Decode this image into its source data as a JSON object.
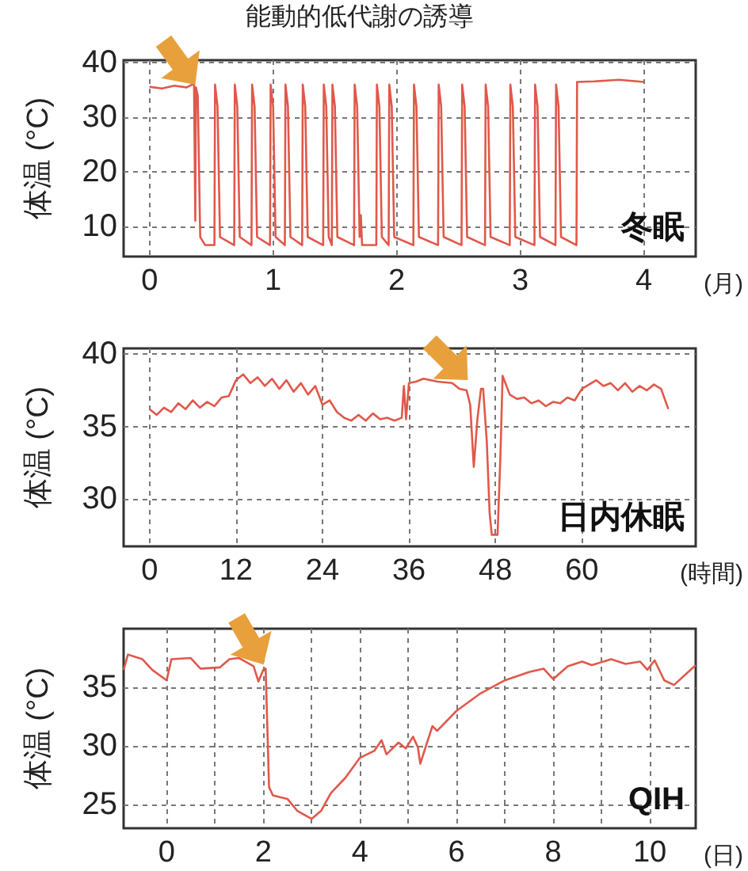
{
  "chart_data": [
    {
      "type": "line",
      "xlabel": "(月)",
      "ylabel": "体温 (°C)",
      "xlim": [
        -0.21,
        4.42
      ],
      "ylim": [
        4.4,
        40.5
      ],
      "xticks": [
        0,
        1,
        2,
        3,
        4
      ],
      "yticks": [
        10,
        20,
        30,
        40
      ],
      "grid": true,
      "annotations": [
        {
          "text": "能動的低代謝の誘導",
          "x": 0.37,
          "y": 36
        },
        "冬眠"
      ],
      "x": [
        0,
        0.1,
        0.2,
        0.3,
        0.36,
        0.37,
        0.375,
        0.39,
        0.41,
        0.45,
        0.525,
        0.53,
        0.55,
        0.57,
        0.685,
        0.69,
        0.71,
        0.73,
        0.825,
        0.83,
        0.85,
        0.87,
        0.975,
        0.98,
        1.0,
        1.02,
        1.095,
        1.1,
        1.12,
        1.14,
        1.235,
        1.24,
        1.26,
        1.28,
        1.405,
        1.41,
        1.43,
        1.45,
        1.475,
        1.48,
        1.5,
        1.52,
        1.655,
        1.66,
        1.68,
        1.7,
        1.71,
        1.72,
        1.835,
        1.84,
        1.86,
        1.88,
        1.935,
        1.94,
        1.96,
        1.98,
        2.135,
        2.14,
        2.16,
        2.18,
        2.335,
        2.34,
        2.36,
        2.38,
        2.525,
        2.53,
        2.55,
        2.57,
        2.715,
        2.72,
        2.74,
        2.76,
        2.915,
        2.92,
        2.94,
        2.96,
        3.115,
        3.12,
        3.14,
        3.16,
        3.285,
        3.29,
        3.31,
        3.33,
        3.455,
        3.46,
        3.6,
        3.8,
        4.0
      ],
      "series": [
        {
          "color": "#e0584a",
          "values": [
            35.6,
            35.3,
            35.8,
            35.5,
            36.2,
            11,
            35.5,
            34,
            8,
            6.5,
            6.5,
            36,
            32,
            8,
            6.5,
            36,
            32,
            8,
            6.5,
            36,
            32,
            8,
            6.5,
            36,
            32,
            8,
            6.5,
            36,
            32,
            8,
            6.5,
            36,
            32,
            8,
            6.5,
            36,
            32,
            8,
            6.5,
            36,
            32,
            8,
            6.5,
            36,
            32,
            8,
            12,
            6.5,
            6.5,
            36,
            32,
            8,
            6.5,
            36,
            32,
            8,
            6.5,
            36,
            32,
            8,
            6.5,
            36,
            32,
            8,
            6.5,
            36,
            32,
            8,
            6.5,
            36,
            32,
            8,
            6.5,
            36,
            32,
            8,
            6.5,
            36,
            32,
            8,
            6.5,
            36,
            32,
            8,
            6.5,
            36.5,
            36.6,
            36.9,
            36.5
          ]
        }
      ]
    },
    {
      "type": "line",
      "xlabel": "(時間)",
      "ylabel": "体温 (°C)",
      "xlim": [
        -3.6,
        75.8
      ],
      "ylim": [
        26.7,
        40.4
      ],
      "xticks": [
        0,
        12,
        24,
        36,
        48,
        60
      ],
      "yticks": [
        30,
        35,
        40
      ],
      "grid": true,
      "annotations": [
        "日内休眠"
      ],
      "x": [
        0,
        1,
        2,
        3,
        4,
        5,
        6,
        7,
        8,
        9,
        10,
        11,
        12,
        13,
        14,
        15,
        16,
        17,
        18,
        19,
        20,
        21,
        22,
        23,
        24,
        25,
        26,
        27,
        28,
        29,
        30,
        31,
        32,
        33,
        34,
        35,
        35.3,
        35.6,
        36,
        37,
        38,
        40,
        42,
        43,
        44,
        44.5,
        45,
        45.5,
        46,
        46.3,
        46.8,
        47.2,
        47.5,
        48.3,
        48.7,
        49,
        50,
        51,
        52,
        53,
        54,
        55,
        56,
        57,
        58,
        59,
        60,
        61,
        62,
        63,
        64,
        65,
        66,
        67,
        68,
        69,
        70,
        71,
        72
      ],
      "series": [
        {
          "color": "#e0584a",
          "values": [
            36.2,
            35.8,
            36.3,
            36.0,
            36.6,
            36.2,
            36.8,
            36.3,
            36.7,
            36.4,
            37.0,
            37.1,
            38.2,
            38.6,
            38.0,
            38.4,
            37.8,
            38.3,
            37.6,
            38.2,
            37.4,
            38.0,
            37.2,
            37.8,
            36.5,
            36.8,
            36.0,
            35.6,
            35.4,
            35.8,
            35.4,
            35.9,
            35.5,
            35.6,
            35.4,
            35.6,
            37.8,
            35.5,
            38.0,
            38.1,
            38.3,
            38.1,
            38.0,
            37.6,
            37.5,
            36.5,
            32.2,
            35.5,
            37.6,
            37.6,
            34,
            29,
            27.5,
            27.5,
            33,
            38.5,
            37.2,
            36.9,
            37.0,
            36.6,
            36.8,
            36.4,
            36.7,
            36.6,
            37.0,
            36.8,
            37.6,
            37.9,
            38.2,
            37.8,
            38.0,
            37.5,
            38.0,
            37.4,
            37.8,
            37.5,
            37.9,
            37.6,
            36.2
          ]
        }
      ]
    },
    {
      "type": "line",
      "xlabel": "(日)",
      "ylabel": "体温 (°C)",
      "xlim": [
        -0.89,
        10.95
      ],
      "ylim": [
        23,
        40
      ],
      "xticks": [
        0,
        {
          "value": 1,
          "label": null
        },
        2,
        {
          "value": 3,
          "label": null
        },
        4,
        {
          "value": 5,
          "label": null
        },
        6,
        {
          "value": 7,
          "label": null
        },
        8,
        {
          "value": 9,
          "label": null
        },
        10
      ],
      "yticks": [
        25,
        30,
        35
      ],
      "grid": true,
      "annotations": [
        "QIH"
      ],
      "x": [
        -0.89,
        -0.8,
        -0.5,
        -0.3,
        0,
        0.1,
        0.5,
        0.7,
        1.1,
        1.3,
        1.5,
        1.8,
        1.9,
        2.0,
        2.05,
        2.12,
        2.2,
        2.5,
        2.7,
        3.0,
        3.2,
        3.4,
        3.7,
        4.0,
        4.3,
        4.45,
        4.55,
        4.8,
        4.95,
        5.1,
        5.2,
        5.25,
        5.5,
        5.6,
        6.0,
        6.5,
        7.0,
        7.5,
        7.8,
        8.0,
        8.3,
        8.6,
        8.8,
        9.2,
        9.5,
        9.8,
        9.95,
        10.1,
        10.3,
        10.5,
        10.95
      ],
      "series": [
        {
          "color": "#e0584a",
          "values": [
            36.5,
            37.8,
            37.4,
            36.5,
            35.6,
            37.4,
            37.5,
            36.6,
            36.7,
            37.4,
            37.5,
            36.8,
            35.5,
            36.5,
            36.6,
            26.5,
            25.8,
            25.5,
            24.5,
            23.8,
            24.5,
            26.0,
            27.3,
            29.0,
            29.6,
            30.5,
            29.3,
            30.3,
            29.8,
            30.8,
            29.9,
            28.5,
            31.7,
            31.3,
            33.0,
            34.5,
            35.6,
            36.3,
            36.6,
            35.7,
            36.8,
            37.2,
            36.9,
            37.4,
            37.0,
            37.2,
            36.5,
            37.3,
            35.6,
            35.2,
            36.9
          ]
        }
      ]
    }
  ]
}
